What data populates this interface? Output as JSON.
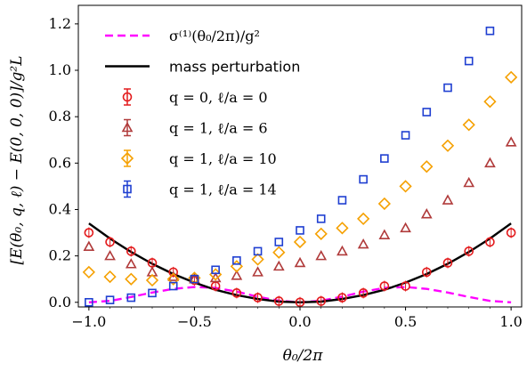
{
  "chart_data": {
    "type": "scatter",
    "xlabel": "θ₀/2π",
    "ylabel": "[E(θ₀, q, ℓ) − E(0, 0, 0)]/g²L",
    "xlim": [
      -1.0,
      1.0
    ],
    "ylim": [
      -0.02,
      1.28
    ],
    "xticks": [
      "−1.0",
      "−0.5",
      "0.0",
      "0.5",
      "1.0"
    ],
    "yticks": [
      "0.0",
      "0.2",
      "0.4",
      "0.6",
      "0.8",
      "1.0",
      "1.2"
    ],
    "legend_position": "top-left",
    "x": [
      -1.0,
      -0.9,
      -0.8,
      -0.7,
      -0.6,
      -0.5,
      -0.4,
      -0.3,
      -0.2,
      -0.1,
      0.0,
      0.1,
      0.2,
      0.3,
      0.4,
      0.5,
      0.6,
      0.7,
      0.8,
      0.9,
      1.0
    ],
    "series": [
      {
        "name": "σ⁽¹⁾(θ₀/2π)/g²",
        "kind": "dashed-line",
        "color": "#ff00ff",
        "values": [
          0.0,
          0.006,
          0.023,
          0.042,
          0.058,
          0.066,
          0.062,
          0.046,
          0.024,
          0.007,
          0.0,
          0.007,
          0.024,
          0.046,
          0.062,
          0.066,
          0.058,
          0.042,
          0.023,
          0.006,
          0.0
        ]
      },
      {
        "name": "mass perturbation",
        "kind": "solid-line",
        "color": "#000000",
        "values": [
          0.34,
          0.275,
          0.217,
          0.166,
          0.122,
          0.085,
          0.054,
          0.031,
          0.014,
          0.003,
          0.0,
          0.003,
          0.014,
          0.031,
          0.054,
          0.085,
          0.122,
          0.166,
          0.217,
          0.275,
          0.34
        ]
      },
      {
        "name": "q = 0, ℓ/a = 0",
        "kind": "circle",
        "color": "#e31a1c",
        "values": [
          0.3,
          0.26,
          0.22,
          0.17,
          0.13,
          0.095,
          0.07,
          0.04,
          0.02,
          0.005,
          0.0,
          0.005,
          0.02,
          0.04,
          0.07,
          0.07,
          0.13,
          0.17,
          0.22,
          0.26,
          0.3
        ]
      },
      {
        "name": "q = 1, ℓ/a = 6",
        "kind": "triangle",
        "color": "#b03a3a",
        "values": [
          0.24,
          0.2,
          0.165,
          0.13,
          0.11,
          0.1,
          0.105,
          0.115,
          0.13,
          0.155,
          0.17,
          0.2,
          0.22,
          0.25,
          0.29,
          0.32,
          0.38,
          0.44,
          0.515,
          0.6,
          0.69
        ]
      },
      {
        "name": "q = 1, ℓ/a = 10",
        "kind": "diamond",
        "color": "#f5a000",
        "values": [
          0.13,
          0.11,
          0.1,
          0.095,
          0.1,
          0.105,
          0.12,
          0.155,
          0.185,
          0.215,
          0.26,
          0.295,
          0.32,
          0.36,
          0.425,
          0.5,
          0.585,
          0.675,
          0.765,
          0.865,
          0.97
        ]
      },
      {
        "name": "q = 1, ℓ/a = 14",
        "kind": "square",
        "color": "#1f3fd1",
        "values": [
          0.0,
          0.01,
          0.02,
          0.04,
          0.07,
          0.1,
          0.14,
          0.18,
          0.22,
          0.26,
          0.31,
          0.36,
          0.44,
          0.53,
          0.62,
          0.72,
          0.82,
          0.925,
          1.04,
          1.17,
          null
        ]
      }
    ]
  }
}
